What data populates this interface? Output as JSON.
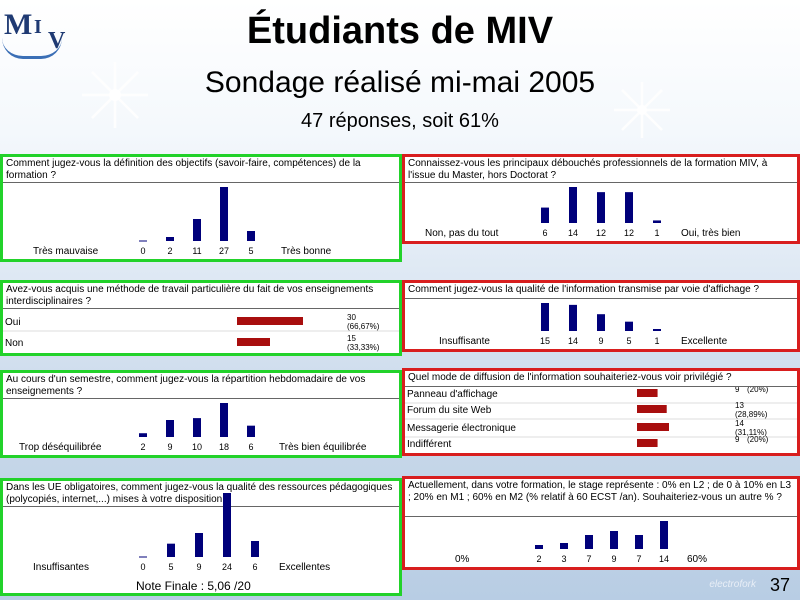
{
  "header": {
    "title": "Étudiants de MIV",
    "subtitle": "Sondage réalisé mi-mai 2005",
    "responses": "47 réponses, soit 61%"
  },
  "logo": {
    "m": "M",
    "i": "I",
    "v": "V"
  },
  "footer": {
    "note": "Note Finale : 5,06 /20",
    "page_number": "37",
    "watermark": "electrofork"
  },
  "colors": {
    "bar_blue": "#00007a",
    "bar_red": "#a80e0e",
    "border_green": "#22d22a",
    "border_red": "#d81e1e"
  },
  "chart_data": [
    {
      "type": "bar",
      "question": "Comment jugez-vous la définition des objectifs (savoir-faire, compétences) de la formation ?",
      "low_label": "Très mauvaise",
      "high_label": "Très bonne",
      "values": [
        0,
        2,
        11,
        27,
        5
      ],
      "value_labels": [
        "0",
        "2",
        "11",
        "27",
        "5"
      ]
    },
    {
      "type": "bar",
      "question": "Connaissez-vous les principaux débouchés professionnels de la formation MIV, à l'issue du Master, hors Doctorat ?",
      "low_label": "Non, pas du tout",
      "high_label": "Oui, très bien",
      "values": [
        6,
        14,
        12,
        12,
        1
      ],
      "value_labels": [
        "6",
        "14",
        "12",
        "12",
        "1"
      ]
    },
    {
      "type": "bar",
      "orientation": "horizontal",
      "question": "Avez-vous acquis une méthode de travail particulière du fait de vos enseignements interdisciplinaires ?",
      "categories": [
        "Oui",
        "Non"
      ],
      "values": [
        30,
        15
      ],
      "value_labels": [
        "30",
        "15"
      ],
      "pct_labels": [
        "(66,67%)",
        "(33,33%)"
      ]
    },
    {
      "type": "bar",
      "question": "Comment jugez-vous la qualité de l'information transmise par voie d'affichage ?",
      "low_label": "Insuffisante",
      "high_label": "Excellente",
      "values": [
        15,
        14,
        9,
        5,
        1
      ],
      "value_labels": [
        "15",
        "14",
        "9",
        "5",
        "1"
      ]
    },
    {
      "type": "bar",
      "question": "Au cours d'un semestre, comment jugez-vous la répartition hebdomadaire de vos enseignements ?",
      "low_label": "Trop déséquilibrée",
      "high_label": "Très bien équilibrée",
      "values": [
        2,
        9,
        10,
        18,
        6
      ],
      "value_labels": [
        "2",
        "9",
        "10",
        "18",
        "6"
      ]
    },
    {
      "type": "bar",
      "orientation": "horizontal",
      "question": "Quel mode de diffusion de l'information souhaiteriez-vous voir privilégié ?",
      "categories": [
        "Panneau d'affichage",
        "Forum du site Web",
        "Messagerie électronique",
        "Indifférent"
      ],
      "values": [
        9,
        13,
        14,
        9
      ],
      "value_labels": [
        "9",
        "13",
        "14",
        "9"
      ],
      "pct_labels": [
        "(20%)",
        "(28,89%)",
        "(31,11%)",
        "(20%)"
      ]
    },
    {
      "type": "bar",
      "question": "Dans les UE obligatoires, comment jugez-vous la qualité des ressources pédagogiques (polycopiés, internet,...) mises à votre disposition ?",
      "low_label": "Insuffisantes",
      "high_label": "Excellentes",
      "values": [
        0,
        5,
        9,
        24,
        6
      ],
      "value_labels": [
        "0",
        "5",
        "9",
        "24",
        "6"
      ]
    },
    {
      "type": "bar",
      "question": "Actuellement, dans votre formation, le stage représente : 0% en L2 ; de 0 à 10% en L3 ; 20% en M1 ; 60% en M2 (% relatif à 60 ECST /an). Souhaiteriez-vous un autre % ?",
      "low_label": "0%",
      "high_label": "60%",
      "values": [
        2,
        3,
        7,
        9,
        7,
        14
      ],
      "value_labels": [
        "2",
        "3",
        "7",
        "9",
        "7",
        "14"
      ]
    }
  ]
}
